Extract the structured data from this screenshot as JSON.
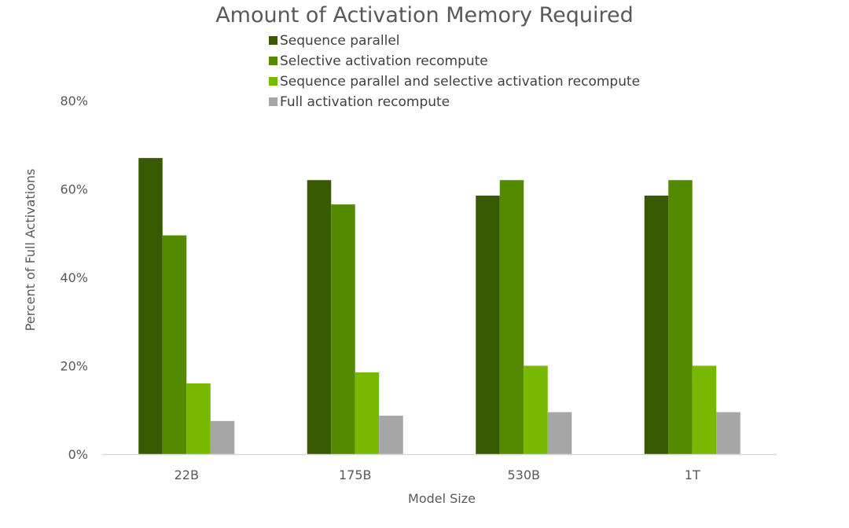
{
  "chart_data": {
    "type": "bar",
    "title": "Amount of Activation Memory Required",
    "xlabel": "Model Size",
    "ylabel": "Percent of Full Activations",
    "categories": [
      "22B",
      "175B",
      "530B",
      "1T"
    ],
    "ylim": [
      0,
      80
    ],
    "yticks": [
      "0%",
      "20%",
      "40%",
      "60%",
      "80%"
    ],
    "ytick_values": [
      0,
      20,
      40,
      60,
      80
    ],
    "grid": false,
    "legend_position": "top",
    "series": [
      {
        "name": "Sequence parallel",
        "color": "#375a00",
        "values": [
          67,
          62,
          58.5,
          58.5
        ]
      },
      {
        "name": "Selective activation recompute",
        "color": "#548a00",
        "values": [
          49.5,
          56.5,
          62,
          62
        ]
      },
      {
        "name": "Sequence parallel and selective activation recompute",
        "color": "#76b900",
        "values": [
          16,
          18.5,
          20,
          20
        ]
      },
      {
        "name": "Full activation recompute",
        "color": "#a6a6a6",
        "values": [
          7.5,
          8.7,
          9.5,
          9.5
        ]
      }
    ]
  }
}
